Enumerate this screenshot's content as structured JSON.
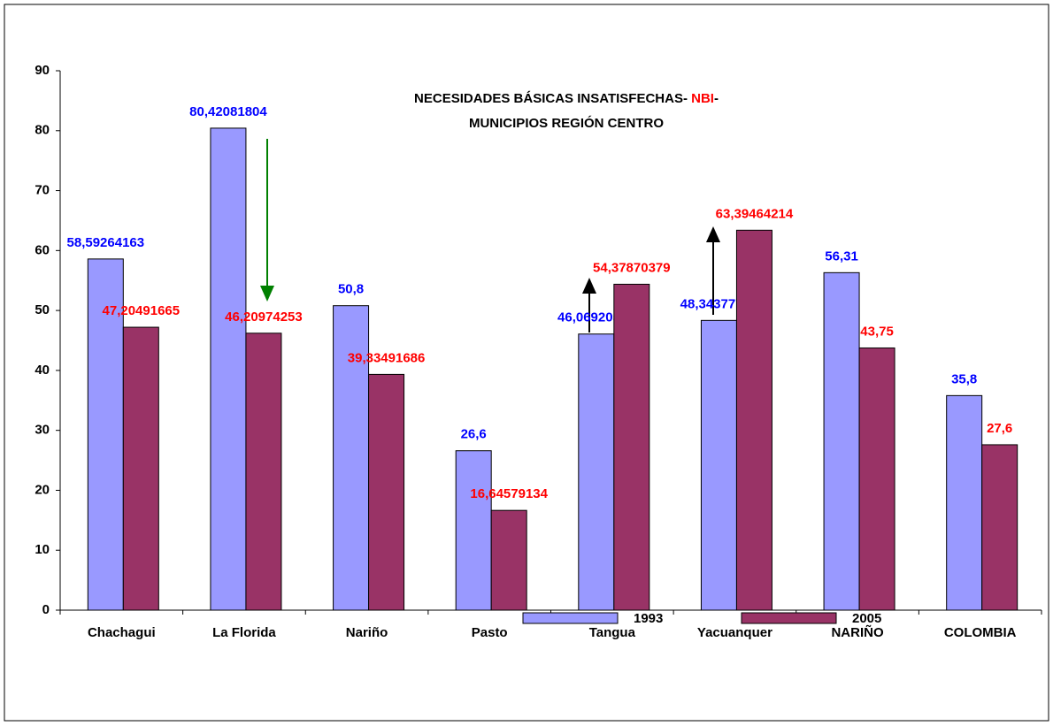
{
  "chart_data": {
    "type": "bar",
    "title": {
      "line1": [
        "NECESIDADES BÁSICAS INSATISFECHAS- ",
        "NBI",
        "-"
      ],
      "line2": "MUNICIPIOS REGIÓN CENTRO"
    },
    "categories": [
      "Chachagui",
      "La Florida",
      "Nariño",
      "Pasto",
      "Tangua",
      "Yacuanquer",
      "NARIÑO",
      "COLOMBIA"
    ],
    "series": [
      {
        "name": "1993",
        "color": "#9999ff",
        "label_color": "#0000ff",
        "values": [
          58.59264163,
          80.42081804,
          50.8,
          26.6,
          46.06920515,
          48.34377798,
          56.31,
          35.8
        ],
        "value_labels": [
          "58,59264163",
          "80,42081804",
          "50,8",
          "26,6",
          "46,06920515",
          "48,34377798",
          "56,31",
          "35,8"
        ]
      },
      {
        "name": "2005",
        "color": "#993366",
        "label_color": "#ff0000",
        "values": [
          47.20491665,
          46.20974253,
          39.33491686,
          16.64579134,
          54.37870379,
          63.39464214,
          43.75,
          27.6
        ],
        "value_labels": [
          "47,20491665",
          "46,20974253",
          "39,33491686",
          "16,64579134",
          "54,37870379",
          "63,39464214",
          "43,75",
          "27,6"
        ]
      }
    ],
    "ylim": [
      0,
      90
    ],
    "yticks": [
      0,
      10,
      20,
      30,
      40,
      50,
      60,
      70,
      80,
      90
    ],
    "grid": false,
    "legend": "bottom"
  }
}
